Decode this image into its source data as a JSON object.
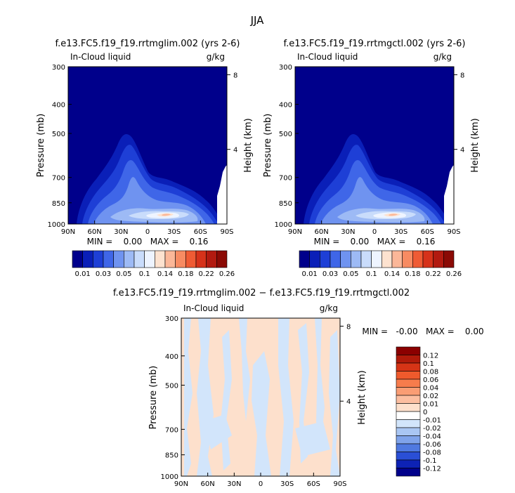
{
  "figure": {
    "title": "JJA",
    "colors": {
      "background": "#ffffff",
      "field_bg": "#00008b",
      "ink": "#000000"
    }
  },
  "chart_data": [
    {
      "type": "heatmap",
      "title": "f.e13.FC5.f19_f19.rrtmglim.002 (yrs 2-6)",
      "left_label": "In-Cloud liquid",
      "right_label": "g/kg",
      "ylabel": "Pressure (mb)",
      "ylabel_right": "Height (km)",
      "x_ticks": [
        "90N",
        "60N",
        "30N",
        "0",
        "30S",
        "60S",
        "90S"
      ],
      "y_ticks": [
        300,
        400,
        500,
        700,
        850,
        1000
      ],
      "y_right_ticks": [
        8,
        4
      ],
      "stats": "MIN =    0.00   MAX =    0.16",
      "min": 0.0,
      "max": 0.16,
      "colorbar": {
        "levels": [
          "0.01",
          "0.03",
          "0.05",
          "0.1",
          "0.14",
          "0.18",
          "0.22",
          "0.26"
        ],
        "colors": [
          "#00008b",
          "#0a1fb8",
          "#1e3fd6",
          "#3f66e8",
          "#6f93f0",
          "#9dbaf5",
          "#c9dcfb",
          "#eef4ff",
          "#fde2cf",
          "#fbb798",
          "#f78b62",
          "#ef5b34",
          "#d6321a",
          "#b21a10",
          "#8b0a05"
        ]
      }
    },
    {
      "type": "heatmap",
      "title": "f.e13.FC5.f19_f19.rrtmgctl.002 (yrs 2-6)",
      "left_label": "In-Cloud liquid",
      "right_label": "g/kg",
      "ylabel": "Pressure (mb)",
      "ylabel_right": "Height (km)",
      "x_ticks": [
        "90N",
        "60N",
        "30N",
        "0",
        "30S",
        "60S",
        "90S"
      ],
      "y_ticks": [
        300,
        400,
        500,
        700,
        850,
        1000
      ],
      "y_right_ticks": [
        8,
        4
      ],
      "stats": "MIN =    0.00   MAX =    0.16",
      "min": 0.0,
      "max": 0.16,
      "colorbar": {
        "levels": [
          "0.01",
          "0.03",
          "0.05",
          "0.1",
          "0.14",
          "0.18",
          "0.22",
          "0.26"
        ],
        "colors": [
          "#00008b",
          "#0a1fb8",
          "#1e3fd6",
          "#3f66e8",
          "#6f93f0",
          "#9dbaf5",
          "#c9dcfb",
          "#eef4ff",
          "#fde2cf",
          "#fbb798",
          "#f78b62",
          "#ef5b34",
          "#d6321a",
          "#b21a10",
          "#8b0a05"
        ]
      }
    },
    {
      "type": "heatmap",
      "title": "f.e13.FC5.f19_f19.rrtmglim.002 − f.e13.FC5.f19_f19.rrtmgctl.002",
      "left_label": "In-Cloud liquid",
      "right_label": "g/kg",
      "ylabel": "Pressure (mb)",
      "ylabel_right": "Height (km)",
      "x_ticks": [
        "90N",
        "60N",
        "30N",
        "0",
        "30S",
        "60S",
        "90S"
      ],
      "y_ticks": [
        300,
        400,
        500,
        700,
        850,
        1000
      ],
      "y_right_ticks": [
        8,
        4
      ],
      "stats": "MIN =   -0.00   MAX =    0.00",
      "min": -0.0,
      "max": 0.0,
      "colorbar": {
        "levels": [
          "0.12",
          "0.1",
          "0.08",
          "0.06",
          "0.04",
          "0.02",
          "0.01",
          "0",
          "-0.01",
          "-0.02",
          "-0.04",
          "-0.06",
          "-0.08",
          "-0.1",
          "-0.12"
        ],
        "colors": [
          "#8b0000",
          "#b01a0a",
          "#d63416",
          "#ef5a2c",
          "#f77c4c",
          "#fa9d74",
          "#fcbea0",
          "#fde0cc",
          "#ffffff",
          "#d2e5fb",
          "#a9c6f3",
          "#7fa3ea",
          "#4f79e0",
          "#2a4fd6",
          "#0d22b5",
          "#00008b"
        ]
      }
    }
  ]
}
